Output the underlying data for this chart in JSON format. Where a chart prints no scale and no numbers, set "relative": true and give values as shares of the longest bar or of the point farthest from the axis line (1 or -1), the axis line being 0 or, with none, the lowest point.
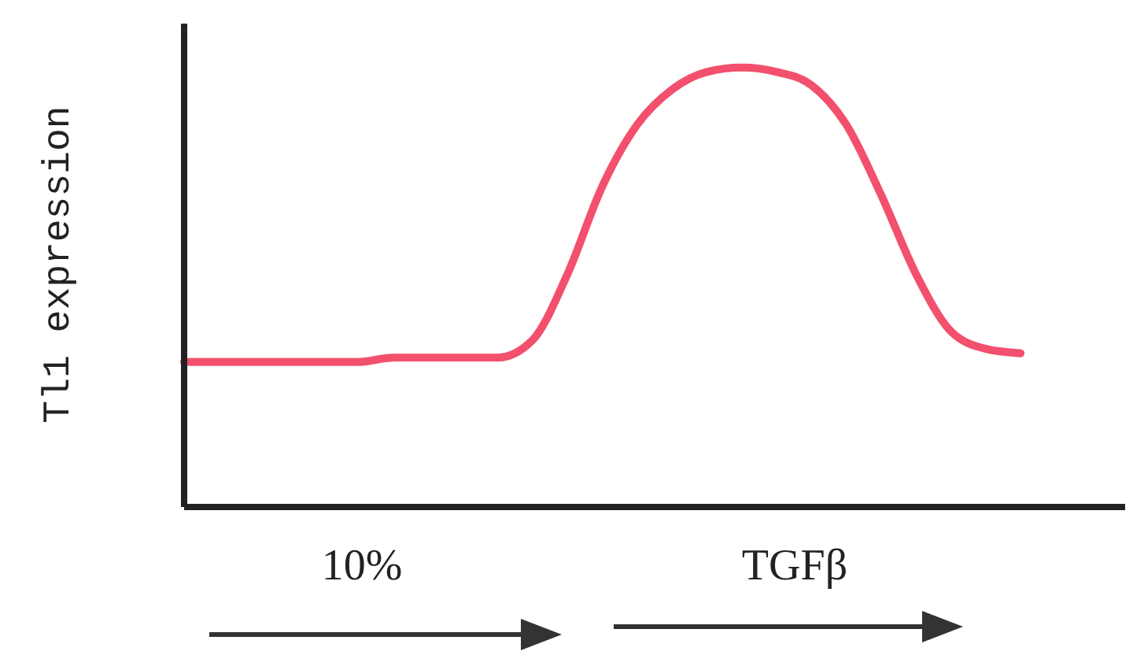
{
  "chart_data": {
    "type": "line",
    "relative": true,
    "ylabel": "Tl1 expression",
    "categories": [
      null,
      null,
      null,
      null,
      null,
      null,
      null,
      null,
      null,
      null,
      null,
      null,
      null,
      null,
      null,
      null,
      null,
      null,
      null,
      null,
      null,
      null,
      null,
      null,
      null,
      null,
      null,
      null
    ],
    "series": [
      {
        "color": "#f2506c",
        "values": [
          0.33,
          0.33,
          0.33,
          0.33,
          0.33,
          0.33,
          0.34,
          0.34,
          0.34,
          0.34,
          0.38,
          0.53,
          0.73,
          0.87,
          0.95,
          0.99,
          1.0,
          0.99,
          0.96,
          0.87,
          0.71,
          0.53,
          0.4,
          0.36,
          0.35,
          null,
          null,
          null
        ]
      }
    ],
    "annotations": [
      "10%",
      "TGFβ"
    ],
    "marker": "none"
  }
}
